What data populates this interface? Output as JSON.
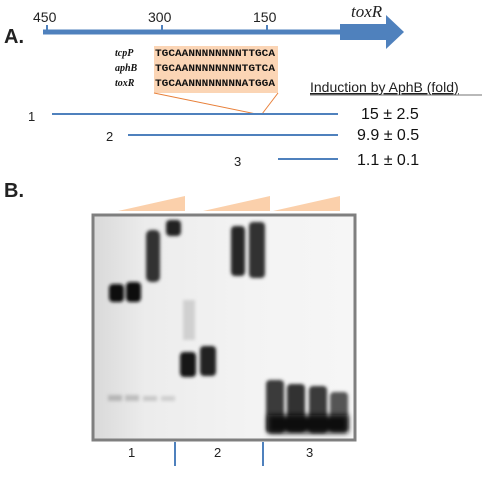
{
  "panel_a": {
    "label": "A.",
    "scale_ticks": [
      "450",
      "300",
      "150"
    ],
    "gene": "toxR",
    "alignment": [
      {
        "name": "tcpP",
        "seq": "TGCAANNNNNNNNTTGCA"
      },
      {
        "name": "aphB",
        "seq": "TGCAANNNNNNNNTGTCA"
      },
      {
        "name": "toxR",
        "seq": "TGCAANNNNNNNNATGGA"
      }
    ],
    "induction_header": "Induction by AphB (fold)",
    "fragments": [
      {
        "id": "1",
        "induction": "15 ± 2.5"
      },
      {
        "id": "2",
        "induction": "9.9 ± 0.5"
      },
      {
        "id": "3",
        "induction": "1.1 ± 0.1"
      }
    ]
  },
  "panel_b": {
    "label": "B.",
    "lane_groups": [
      "1",
      "2",
      "3"
    ]
  },
  "colors": {
    "accent_blue": "#4f81bd",
    "highlight": "#fbd5b5",
    "wedge": "#fbd0ab",
    "gel_frame": "#7f7f7f",
    "band": "#111111"
  }
}
